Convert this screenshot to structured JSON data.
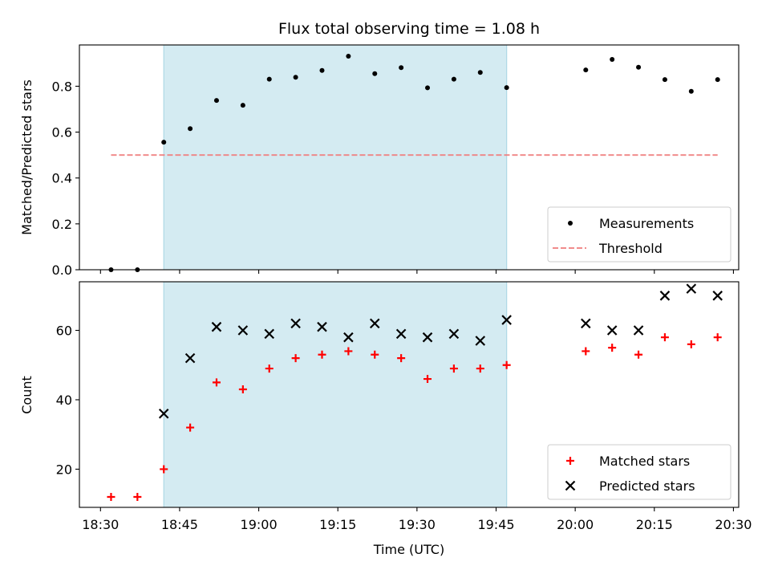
{
  "chart_data": [
    {
      "type": "scatter",
      "title": "Flux total observing time = 1.08 h",
      "ylabel": "Matched/Predicted stars",
      "xlim": [
        "18:26",
        "20:31"
      ],
      "ylim": [
        0,
        0.98
      ],
      "x_ticks": [
        "18:30",
        "18:45",
        "19:00",
        "19:15",
        "19:30",
        "19:45",
        "20:00",
        "20:15",
        "20:30"
      ],
      "y_ticks": [
        "0.0",
        "0.2",
        "0.4",
        "0.6",
        "0.8"
      ],
      "show_x_tick_labels": false,
      "grid": false,
      "legend_position": "lower right",
      "shaded_interval": [
        "18:42",
        "19:47"
      ],
      "x": [
        "18:32",
        "18:37",
        "18:42",
        "18:47",
        "18:52",
        "18:57",
        "19:02",
        "19:07",
        "19:12",
        "19:17",
        "19:22",
        "19:27",
        "19:32",
        "19:37",
        "19:42",
        "19:47",
        "20:02",
        "20:07",
        "20:12",
        "20:17",
        "20:22",
        "20:27"
      ],
      "series": [
        {
          "name": "Measurements",
          "marker": "dot",
          "color": "#000000",
          "values": [
            0.0,
            0.0,
            0.556,
            0.615,
            0.738,
            0.717,
            0.831,
            0.839,
            0.869,
            0.931,
            0.855,
            0.881,
            0.793,
            0.831,
            0.86,
            0.794,
            0.871,
            0.917,
            0.883,
            0.829,
            0.778,
            0.829
          ]
        },
        {
          "name": "Threshold",
          "marker": "dashed-line",
          "color": "#f08080",
          "x": [
            "18:32",
            "20:27"
          ],
          "values": [
            0.5,
            0.5
          ]
        }
      ]
    },
    {
      "type": "scatter",
      "title": "",
      "xlabel": "Time (UTC)",
      "ylabel": "Count",
      "xlim": [
        "18:26",
        "20:31"
      ],
      "ylim": [
        9,
        74
      ],
      "x_ticks": [
        "18:30",
        "18:45",
        "19:00",
        "19:15",
        "19:30",
        "19:45",
        "20:00",
        "20:15",
        "20:30"
      ],
      "y_ticks": [
        "20",
        "40",
        "60"
      ],
      "show_x_tick_labels": true,
      "grid": false,
      "legend_position": "lower right",
      "shaded_interval": [
        "18:42",
        "19:47"
      ],
      "x": [
        "18:32",
        "18:37",
        "18:42",
        "18:47",
        "18:52",
        "18:57",
        "19:02",
        "19:07",
        "19:12",
        "19:17",
        "19:22",
        "19:27",
        "19:32",
        "19:37",
        "19:42",
        "19:47",
        "20:02",
        "20:07",
        "20:12",
        "20:17",
        "20:22",
        "20:27"
      ],
      "series": [
        {
          "name": "Matched stars",
          "marker": "plus",
          "color": "#ff0000",
          "values": [
            12,
            12,
            20,
            32,
            45,
            43,
            49,
            52,
            53,
            54,
            53,
            52,
            46,
            49,
            49,
            50,
            54,
            55,
            53,
            58,
            56,
            58
          ]
        },
        {
          "name": "Predicted stars",
          "marker": "x",
          "color": "#000000",
          "values": [
            null,
            null,
            36,
            52,
            61,
            60,
            59,
            62,
            61,
            58,
            62,
            59,
            58,
            59,
            57,
            63,
            62,
            60,
            60,
            70,
            72,
            70
          ]
        }
      ]
    }
  ],
  "colors": {
    "shade": "#add8e6",
    "axes": "#000000",
    "background": "#ffffff"
  }
}
